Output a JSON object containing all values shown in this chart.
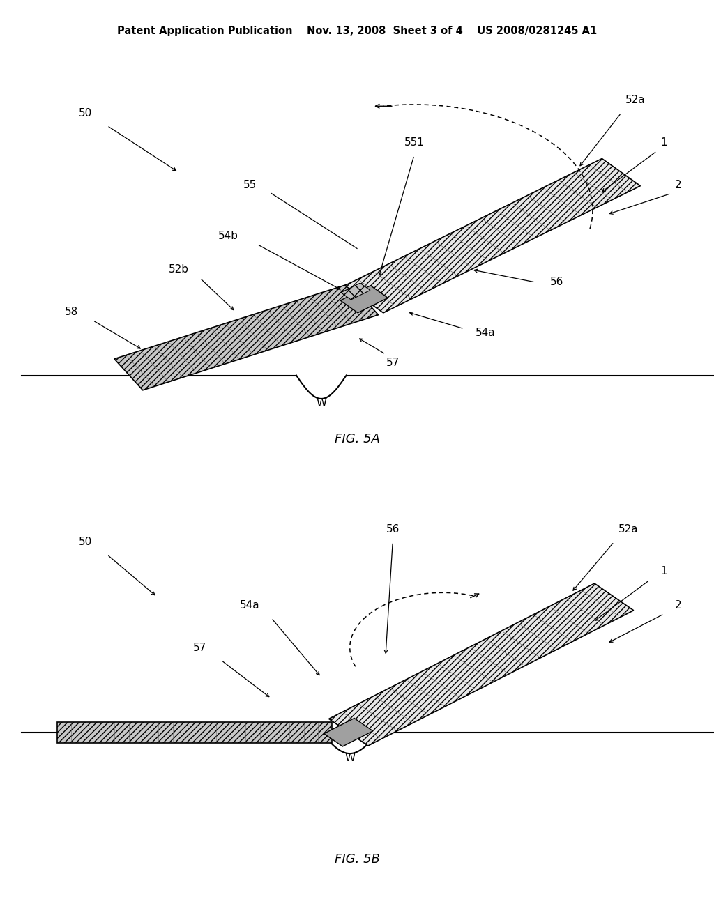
{
  "background_color": "#ffffff",
  "header_text": "Patent Application Publication    Nov. 13, 2008  Sheet 3 of 4    US 2008/0281245 A1",
  "header_fontsize": 10.5,
  "fig5a_label": "FIG. 5A",
  "fig5b_label": "FIG. 5B",
  "fig_label_fontsize": 13,
  "annotation_fontsize": 11,
  "line_color": "#000000",
  "strip_face": "#c8c8c8",
  "strip_face2": "#e8e8e8",
  "block_face": "#909090"
}
